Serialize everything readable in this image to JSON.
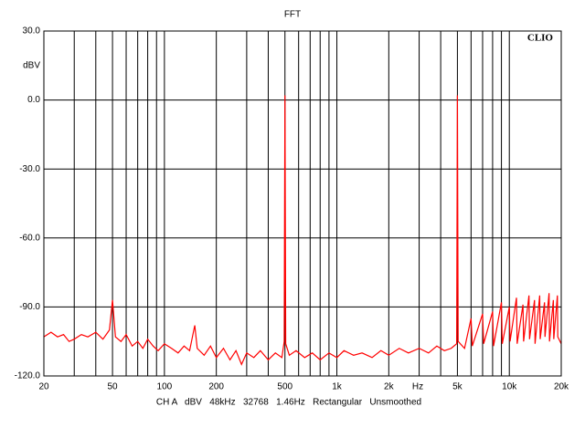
{
  "chart_data": {
    "type": "line",
    "title": "FFT",
    "ylabel": "dBV",
    "xlabel": "Hz",
    "brand": "CLIO",
    "footer": "CH A   dBV   48kHz   32768   1.46Hz   Rectangular   Unsmoothed",
    "xscale": "log",
    "grid": true,
    "xlim": [
      20,
      20000
    ],
    "ylim": [
      -120,
      30
    ],
    "xticks": [
      20,
      50,
      100,
      200,
      500,
      {
        "value": 1000,
        "label": "1k"
      },
      {
        "value": 2000,
        "label": "2k"
      },
      {
        "value": 5000,
        "label": "5k"
      },
      {
        "value": 10000,
        "label": "10k"
      },
      {
        "value": 20000,
        "label": "20k"
      }
    ],
    "xgrid": [
      30,
      40,
      60,
      70,
      80,
      90,
      300,
      400,
      600,
      700,
      800,
      900,
      3000,
      4000,
      6000,
      7000,
      8000,
      9000
    ],
    "yticks": [
      {
        "value": 30,
        "label": "30.0"
      },
      {
        "value": 0,
        "label": "0.0"
      },
      {
        "value": -30,
        "label": "-30.0"
      },
      {
        "value": -60,
        "label": "-60.0"
      },
      {
        "value": -90,
        "label": "-90.0"
      },
      {
        "value": -120,
        "label": "-120.0"
      }
    ],
    "series": [
      {
        "name": "CH A",
        "color": "#ff0000",
        "x": [
          20,
          22,
          24,
          26,
          28,
          30,
          33,
          36,
          40,
          44,
          48,
          50,
          52,
          56,
          60,
          65,
          70,
          75,
          80,
          86,
          92,
          100,
          110,
          120,
          130,
          140,
          150,
          155,
          170,
          185,
          200,
          220,
          240,
          260,
          280,
          300,
          330,
          360,
          400,
          440,
          480,
          495,
          500,
          505,
          530,
          580,
          650,
          720,
          800,
          900,
          1000,
          1100,
          1250,
          1400,
          1600,
          1800,
          2000,
          2300,
          2600,
          3000,
          3400,
          3800,
          4200,
          4600,
          4950,
          5000,
          5050,
          5500,
          6000,
          6100,
          7000,
          7100,
          8000,
          8100,
          9000,
          9100,
          10000,
          10100,
          11000,
          11100,
          12000,
          12100,
          13000,
          13100,
          14000,
          14100,
          15000,
          15100,
          16000,
          16100,
          17000,
          17100,
          18000,
          18100,
          19000,
          19100,
          20000
        ],
        "values": [
          -103,
          -101,
          -103,
          -102,
          -105,
          -104,
          -102,
          -103,
          -101,
          -104,
          -100,
          -87,
          -103,
          -105,
          -102,
          -107,
          -105,
          -108,
          -104,
          -107,
          -109,
          -106,
          -108,
          -110,
          -107,
          -109,
          -98,
          -108,
          -111,
          -107,
          -112,
          -108,
          -113,
          -109,
          -115,
          -110,
          -112,
          -109,
          -113,
          -110,
          -112,
          -105,
          2,
          -106,
          -111,
          -109,
          -112,
          -110,
          -113,
          -110,
          -112,
          -109,
          -111,
          -110,
          -112,
          -109,
          -111,
          -108,
          -110,
          -108,
          -110,
          -107,
          -109,
          -108,
          -106,
          2,
          -105,
          -108,
          -95,
          -107,
          -93,
          -106,
          -92,
          -107,
          -88,
          -106,
          -90,
          -105,
          -86,
          -106,
          -89,
          -105,
          -85,
          -104,
          -87,
          -106,
          -85,
          -104,
          -88,
          -103,
          -84,
          -105,
          -87,
          -104,
          -85,
          -103,
          -106
        ]
      }
    ]
  }
}
